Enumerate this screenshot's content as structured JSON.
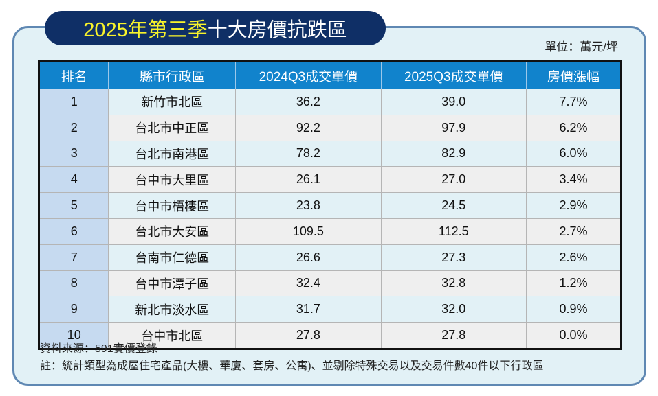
{
  "title": {
    "highlight": "2025年第三季",
    "rest": "十大房價抗跌區"
  },
  "unit": "單位：萬元/坪",
  "table": {
    "headers": [
      "排名",
      "縣市行政區",
      "2024Q3成交單價",
      "2025Q3成交單價",
      "房價漲幅"
    ],
    "rows": [
      [
        "1",
        "新竹市北區",
        "36.2",
        "39.0",
        "7.7%"
      ],
      [
        "2",
        "台北市中正區",
        "92.2",
        "97.9",
        "6.2%"
      ],
      [
        "3",
        "台北市南港區",
        "78.2",
        "82.9",
        "6.0%"
      ],
      [
        "4",
        "台中市大里區",
        "26.1",
        "27.0",
        "3.4%"
      ],
      [
        "5",
        "台中市梧棲區",
        "23.8",
        "24.5",
        "2.9%"
      ],
      [
        "6",
        "台北市大安區",
        "109.5",
        "112.5",
        "2.7%"
      ],
      [
        "7",
        "台南市仁德區",
        "26.6",
        "27.3",
        "2.6%"
      ],
      [
        "8",
        "台中市潭子區",
        "32.4",
        "32.8",
        "1.2%"
      ],
      [
        "9",
        "新北市淡水區",
        "31.7",
        "32.0",
        "0.9%"
      ],
      [
        "10",
        "台中市北區",
        "27.8",
        "27.8",
        "0.0%"
      ]
    ]
  },
  "notes": {
    "source": "資料來源：591實價登錄",
    "note": "註：統計類型為成屋住宅產品(大樓、華廈、套房、公寓)、並剔除特殊交易以及交易件數40件以下行政區"
  },
  "colors": {
    "title_bg": "#0f2f66",
    "highlight": "#f8f32b",
    "header_bg": "#1183cc",
    "rank_bg": "#c6daf0",
    "panel_bg": "#e2f1f6",
    "panel_border": "#5f88b3"
  }
}
